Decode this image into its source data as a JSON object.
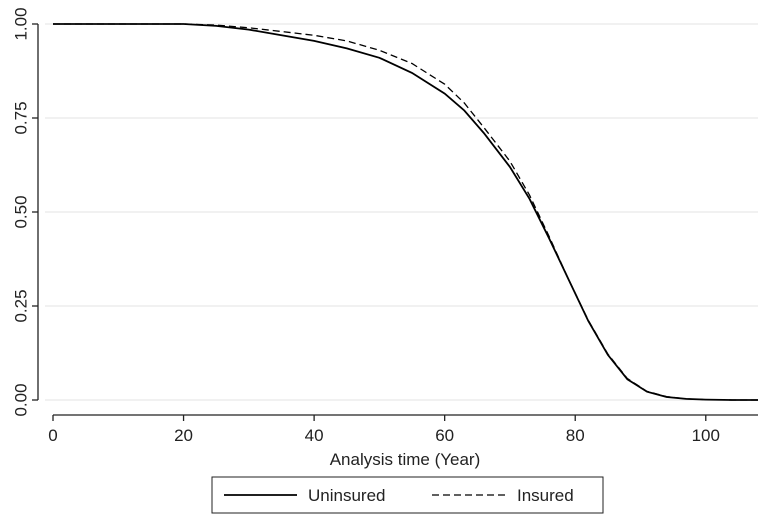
{
  "chart_data": {
    "type": "line",
    "title": "",
    "xlabel": "Analysis time (Year)",
    "ylabel": "",
    "xlim": [
      0,
      108
    ],
    "ylim": [
      0,
      1
    ],
    "x_ticks": [
      0,
      20,
      40,
      60,
      80,
      100
    ],
    "y_ticks": [
      0.0,
      0.25,
      0.5,
      0.75,
      1.0
    ],
    "x_tick_labels": [
      "0",
      "20",
      "40",
      "60",
      "80",
      "100"
    ],
    "y_tick_labels": [
      "0.00",
      "0.25",
      "0.50",
      "0.75",
      "1.00"
    ],
    "grid": "horizontal",
    "legend_position": "bottom",
    "series": [
      {
        "name": "Uninsured",
        "style": "solid",
        "color": "#000000",
        "x": [
          0,
          10,
          20,
          25,
          30,
          35,
          40,
          45,
          50,
          55,
          60,
          63,
          66,
          70,
          73,
          76,
          79,
          82,
          85,
          88,
          91,
          94,
          97,
          100,
          104,
          108
        ],
        "y": [
          1.0,
          1.0,
          1.0,
          0.995,
          0.985,
          0.97,
          0.955,
          0.935,
          0.91,
          0.87,
          0.815,
          0.77,
          0.71,
          0.62,
          0.535,
          0.43,
          0.32,
          0.21,
          0.12,
          0.055,
          0.022,
          0.008,
          0.003,
          0.001,
          0.0,
          0.0
        ]
      },
      {
        "name": "Insured",
        "style": "dashed",
        "color": "#000000",
        "x": [
          0,
          10,
          20,
          25,
          30,
          35,
          40,
          45,
          50,
          55,
          60,
          63,
          66,
          70,
          73,
          76,
          79,
          82,
          85,
          88,
          91,
          94,
          97,
          100,
          104,
          108
        ],
        "y": [
          1.0,
          1.0,
          1.0,
          0.997,
          0.99,
          0.98,
          0.97,
          0.955,
          0.93,
          0.895,
          0.84,
          0.79,
          0.725,
          0.635,
          0.545,
          0.435,
          0.32,
          0.212,
          0.122,
          0.057,
          0.023,
          0.009,
          0.003,
          0.001,
          0.0,
          0.0
        ]
      }
    ]
  }
}
